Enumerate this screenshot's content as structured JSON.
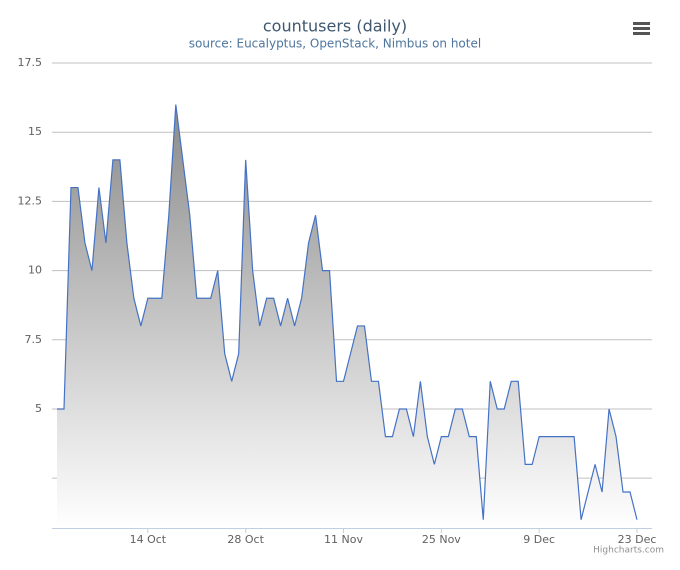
{
  "chart_data": {
    "type": "area",
    "title": "countusers (daily)",
    "subtitle": "source: Eucalyptus, OpenStack, Nimbus on hotel",
    "credits": "Highcharts.com",
    "categories": [
      null,
      null,
      null,
      null,
      null,
      null,
      null,
      null,
      null,
      null,
      null,
      null,
      null,
      "14 Oct",
      null,
      null,
      null,
      null,
      null,
      null,
      null,
      null,
      null,
      null,
      null,
      null,
      null,
      "28 Oct",
      null,
      null,
      null,
      null,
      null,
      null,
      null,
      null,
      null,
      null,
      null,
      null,
      null,
      "11 Nov",
      null,
      null,
      null,
      null,
      null,
      null,
      null,
      null,
      null,
      null,
      null,
      null,
      null,
      "25 Nov",
      null,
      null,
      null,
      null,
      null,
      null,
      null,
      null,
      null,
      null,
      null,
      null,
      null,
      "9 Dec",
      null,
      null,
      null,
      null,
      null,
      null,
      null,
      null,
      null,
      null,
      null,
      null,
      null,
      "23 Dec"
    ],
    "values": [
      5,
      5,
      13,
      13,
      11,
      10,
      13,
      11,
      14,
      14,
      11,
      9,
      8,
      9,
      9,
      9,
      12,
      16,
      14,
      12,
      9,
      9,
      9,
      10,
      7,
      6,
      7,
      14,
      10,
      8,
      9,
      9,
      8,
      9,
      8,
      9,
      11,
      12,
      10,
      10,
      6,
      6,
      7,
      8,
      8,
      6,
      6,
      4,
      4,
      5,
      5,
      4,
      6,
      4,
      3,
      4,
      4,
      5,
      5,
      4,
      4,
      1,
      6,
      5,
      5,
      6,
      6,
      3,
      3,
      4,
      4,
      4,
      4,
      4,
      4,
      1,
      2,
      3,
      2,
      5,
      4,
      2,
      2,
      1
    ],
    "color": "#4572c4",
    "ylim": [
      0.7,
      17.5
    ],
    "yticks": [
      {
        "value": 2.5,
        "label": null
      },
      5,
      7.5,
      10,
      12.5,
      15,
      17.5
    ],
    "grid": true
  }
}
